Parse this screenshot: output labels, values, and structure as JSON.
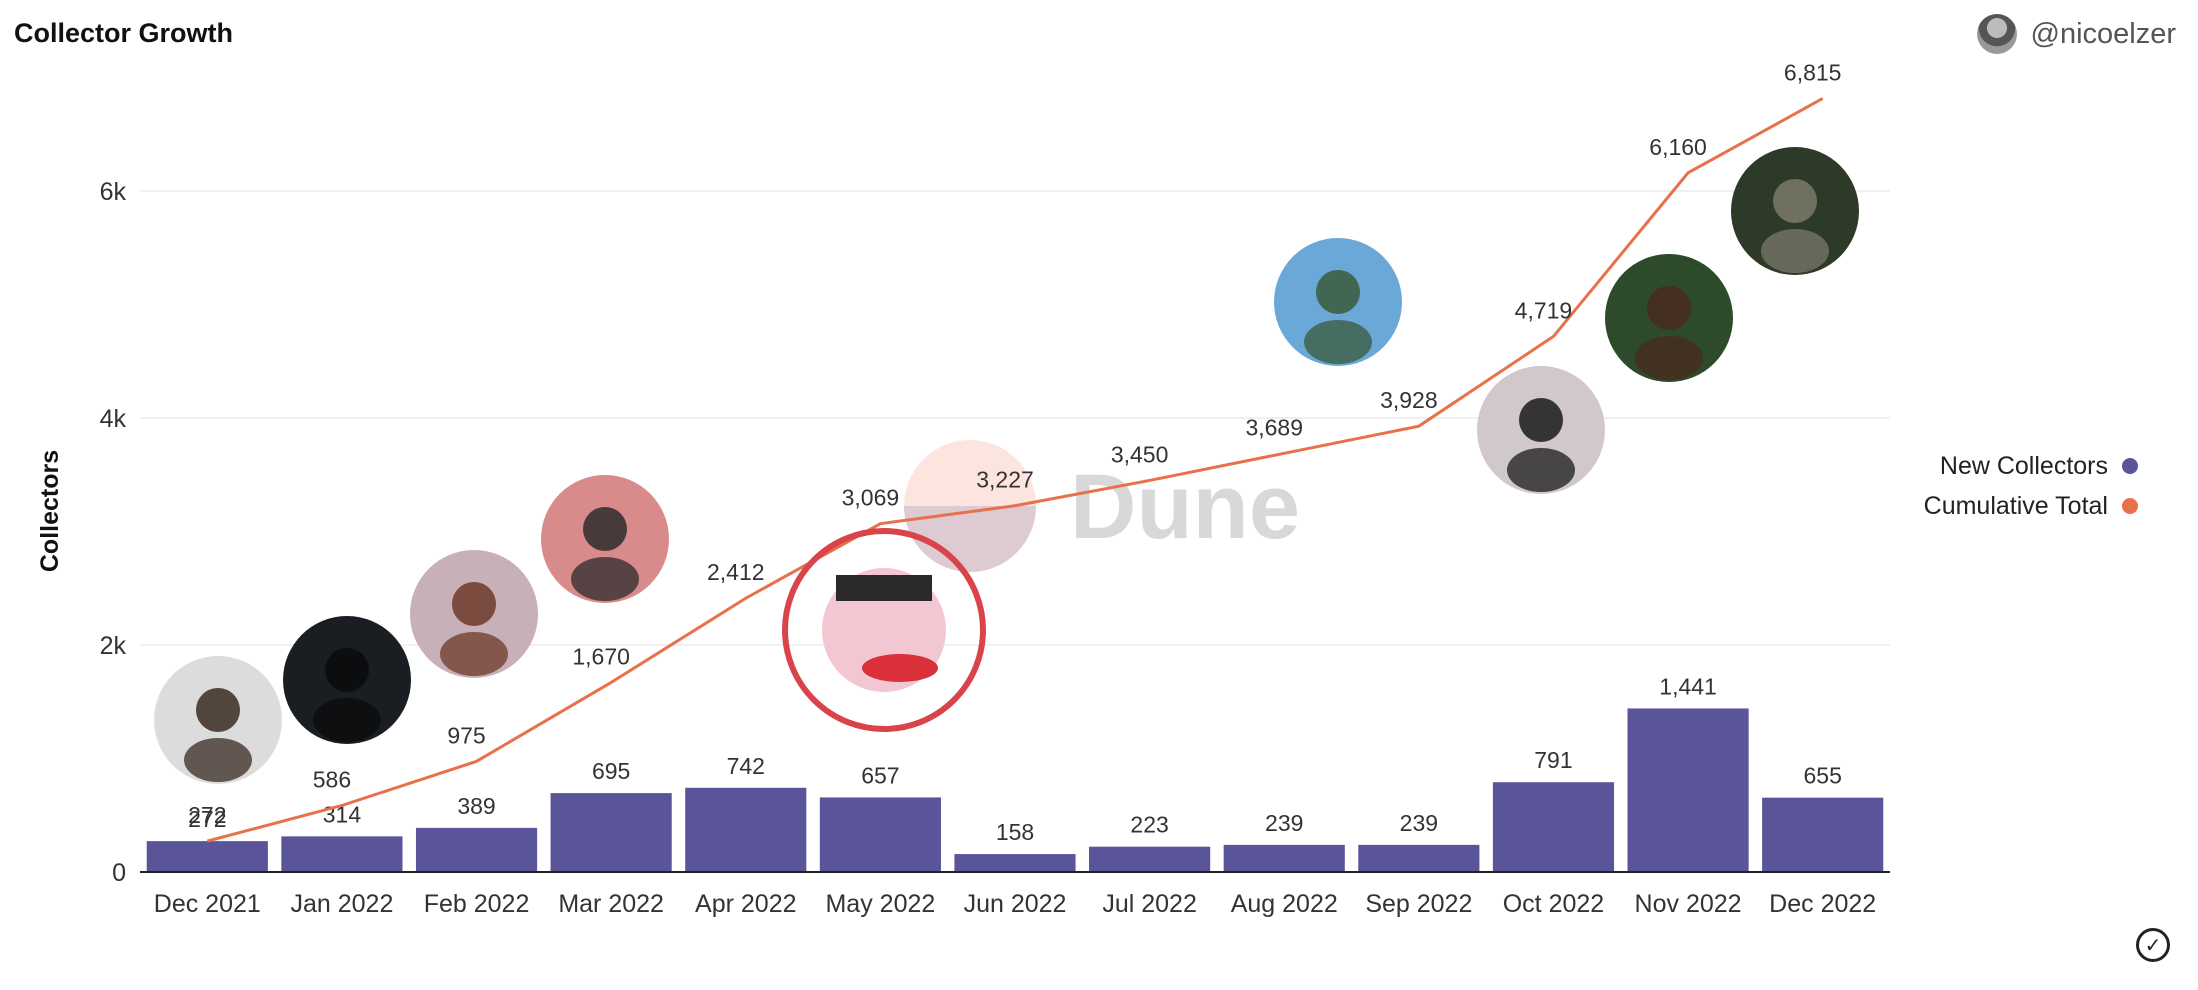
{
  "header": {
    "title": "Collector Growth",
    "username": "@nicoelzer"
  },
  "watermark": "Dune",
  "legend": [
    {
      "label": "New Collectors",
      "color": "#5a5499"
    },
    {
      "label": "Cumulative Total",
      "color": "#e8704a"
    }
  ],
  "chart_data": {
    "type": "bar",
    "ylabel": "Collectors",
    "xlabel": "",
    "ylim": [
      0,
      7000
    ],
    "yticks": [
      0,
      2000,
      4000,
      6000
    ],
    "ytick_labels": [
      "0",
      "2k",
      "4k",
      "6k"
    ],
    "categories": [
      "Dec 2021",
      "Jan 2022",
      "Feb 2022",
      "Mar 2022",
      "Apr 2022",
      "May 2022",
      "Jun 2022",
      "Jul 2022",
      "Aug 2022",
      "Sep 2022",
      "Oct 2022",
      "Nov 2022",
      "Dec 2022"
    ],
    "series": [
      {
        "name": "New Collectors",
        "type": "bar",
        "color": "#5a5499",
        "values": [
          272,
          314,
          389,
          695,
          742,
          657,
          158,
          223,
          239,
          239,
          791,
          1441,
          655
        ],
        "labels": [
          "272",
          "314",
          "389",
          "695",
          "742",
          "657",
          "158",
          "223",
          "239",
          "239",
          "791",
          "1,441",
          "655"
        ]
      },
      {
        "name": "Cumulative Total",
        "type": "line",
        "color": "#e8704a",
        "values": [
          272,
          586,
          975,
          1670,
          2412,
          3069,
          3227,
          3450,
          3689,
          3928,
          4719,
          6160,
          6815
        ],
        "labels": [
          "272",
          "586",
          "975",
          "1,670",
          "2,412",
          "3,069",
          "3,227",
          "3,450",
          "3,689",
          "3,928",
          "4,719",
          "6,160",
          "6,815"
        ]
      }
    ],
    "grid": true,
    "legend_position": "right"
  },
  "icons": {
    "check": "check-circle-icon",
    "avatar": "user-avatar"
  }
}
